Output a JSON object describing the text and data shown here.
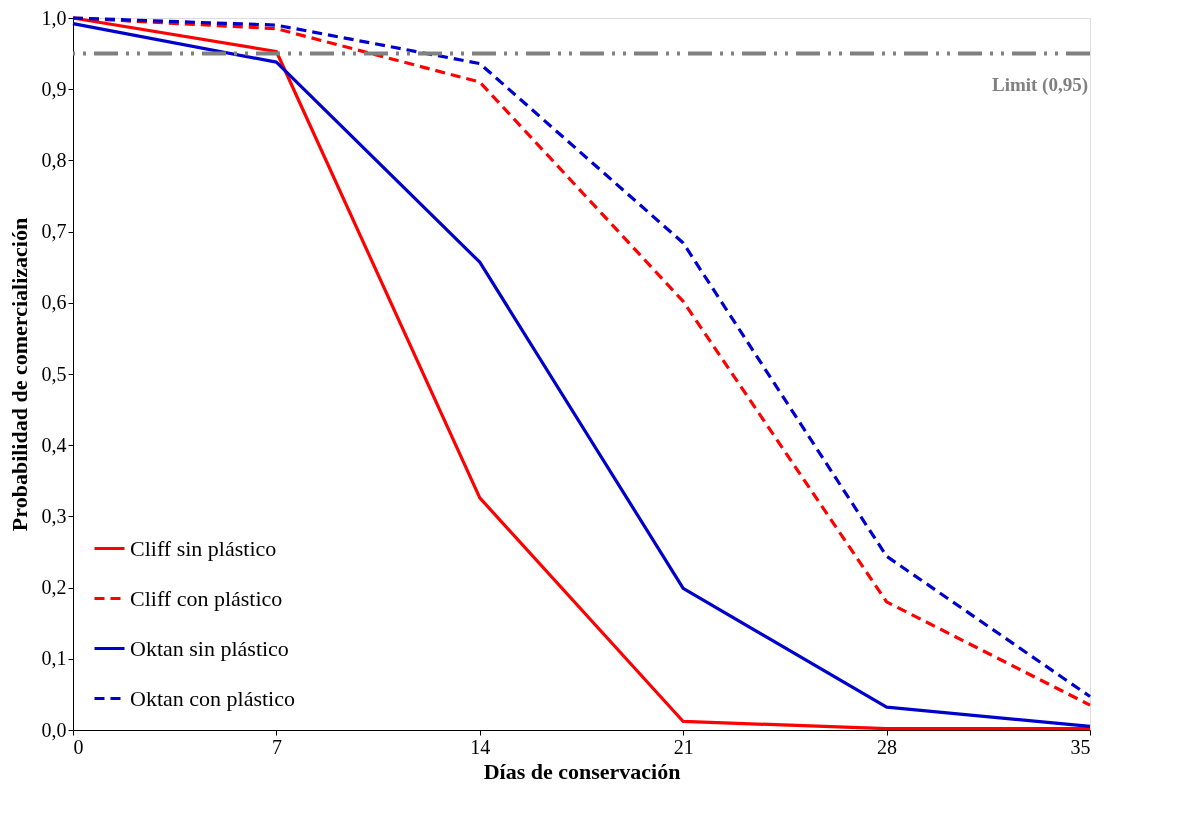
{
  "chart_data": {
    "type": "line",
    "xlabel": "Días de conservación",
    "ylabel": "Probabilidad de comercialización",
    "x": [
      0,
      7,
      14,
      21,
      28,
      35
    ],
    "xlim": [
      0,
      35
    ],
    "xticks": [
      0,
      7,
      14,
      21,
      28,
      35
    ],
    "ylim": [
      0,
      1
    ],
    "yticks": [
      {
        "value": 0,
        "label": "0,0"
      },
      {
        "value": 0.1,
        "label": "0,1"
      },
      {
        "value": 0.2,
        "label": "0,2"
      },
      {
        "value": 0.3,
        "label": "0,3"
      },
      {
        "value": 0.4,
        "label": "0,4"
      },
      {
        "value": 0.5,
        "label": "0,5"
      },
      {
        "value": 0.6,
        "label": "0,6"
      },
      {
        "value": 0.7,
        "label": "0,7"
      },
      {
        "value": 0.8,
        "label": "0,8"
      },
      {
        "value": 0.9,
        "label": "0,9"
      },
      {
        "value": 1,
        "label": "1,0"
      }
    ],
    "series": [
      {
        "name": "Cliff sin plástico",
        "color": "#ff0000",
        "line_style": "solid",
        "values": [
          1.0,
          0.953,
          0.326,
          0.012,
          0.002,
          0.002
        ]
      },
      {
        "name": "Cliff con plástico",
        "color": "#ff0000",
        "line_style": "dashed",
        "values": [
          1.0,
          0.985,
          0.91,
          0.602,
          0.18,
          0.035
        ]
      },
      {
        "name": "Oktan sin plástico",
        "color": "#0000cc",
        "line_style": "solid",
        "values": [
          0.992,
          0.938,
          0.657,
          0.199,
          0.032,
          0.005
        ]
      },
      {
        "name": "Oktan con plástico",
        "color": "#0000cc",
        "line_style": "dashed",
        "values": [
          1.0,
          0.99,
          0.936,
          0.684,
          0.244,
          0.047
        ]
      }
    ],
    "ref_lines": [
      {
        "axis": "y",
        "value": 0.95,
        "label": "Limit (0,95)",
        "color": "#808080",
        "line_style": "dashdot"
      }
    ],
    "legend": "bottom left",
    "grid": false,
    "marker": "none"
  }
}
